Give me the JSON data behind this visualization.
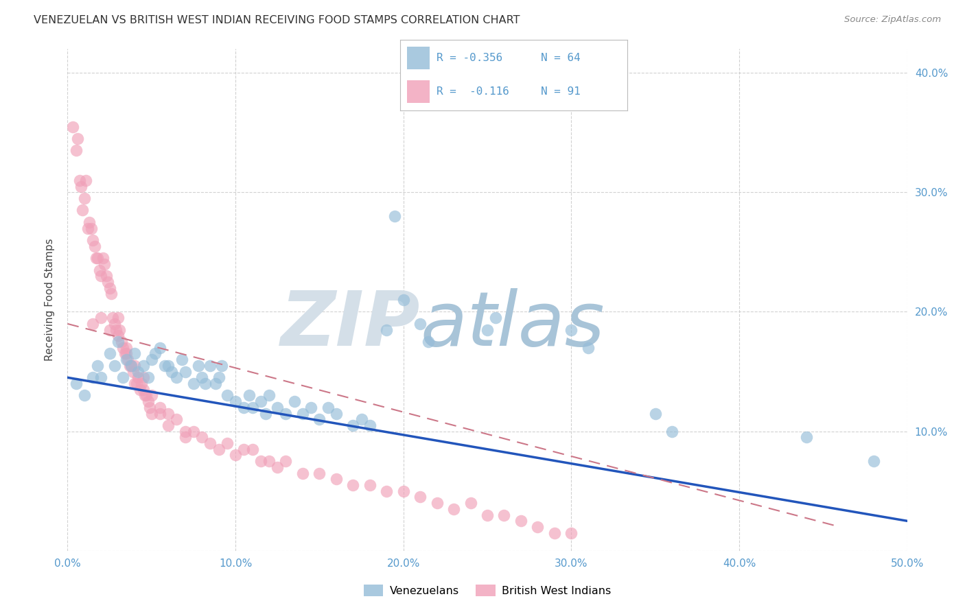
{
  "title": "VENEZUELAN VS BRITISH WEST INDIAN RECEIVING FOOD STAMPS CORRELATION CHART",
  "source": "Source: ZipAtlas.com",
  "ylabel": "Receiving Food Stamps",
  "xlim": [
    0.0,
    0.5
  ],
  "ylim": [
    0.0,
    0.42
  ],
  "xticks": [
    0.0,
    0.1,
    0.2,
    0.3,
    0.4,
    0.5
  ],
  "yticks": [
    0.0,
    0.1,
    0.2,
    0.3,
    0.4
  ],
  "xtick_labels": [
    "0.0%",
    "10.0%",
    "20.0%",
    "30.0%",
    "40.0%",
    "50.0%"
  ],
  "ytick_labels": [
    "",
    "10.0%",
    "20.0%",
    "30.0%",
    "40.0%"
  ],
  "venezuelan_color": "#94bcd8",
  "bwi_color": "#f0a0b8",
  "venezuelan_line_color": "#2255bb",
  "bwi_line_color": "#cc7788",
  "watermark_zip": "ZIP",
  "watermark_atlas": "atlas",
  "watermark_color_zip": "#d0dde8",
  "watermark_color_atlas": "#a8c8e0",
  "venezuelan_scatter": [
    [
      0.005,
      0.14
    ],
    [
      0.01,
      0.13
    ],
    [
      0.015,
      0.145
    ],
    [
      0.018,
      0.155
    ],
    [
      0.02,
      0.145
    ],
    [
      0.025,
      0.165
    ],
    [
      0.028,
      0.155
    ],
    [
      0.03,
      0.175
    ],
    [
      0.033,
      0.145
    ],
    [
      0.035,
      0.16
    ],
    [
      0.038,
      0.155
    ],
    [
      0.04,
      0.165
    ],
    [
      0.042,
      0.15
    ],
    [
      0.045,
      0.155
    ],
    [
      0.048,
      0.145
    ],
    [
      0.05,
      0.16
    ],
    [
      0.052,
      0.165
    ],
    [
      0.055,
      0.17
    ],
    [
      0.058,
      0.155
    ],
    [
      0.06,
      0.155
    ],
    [
      0.062,
      0.15
    ],
    [
      0.065,
      0.145
    ],
    [
      0.068,
      0.16
    ],
    [
      0.07,
      0.15
    ],
    [
      0.075,
      0.14
    ],
    [
      0.078,
      0.155
    ],
    [
      0.08,
      0.145
    ],
    [
      0.082,
      0.14
    ],
    [
      0.085,
      0.155
    ],
    [
      0.088,
      0.14
    ],
    [
      0.09,
      0.145
    ],
    [
      0.092,
      0.155
    ],
    [
      0.095,
      0.13
    ],
    [
      0.1,
      0.125
    ],
    [
      0.105,
      0.12
    ],
    [
      0.108,
      0.13
    ],
    [
      0.11,
      0.12
    ],
    [
      0.115,
      0.125
    ],
    [
      0.118,
      0.115
    ],
    [
      0.12,
      0.13
    ],
    [
      0.125,
      0.12
    ],
    [
      0.13,
      0.115
    ],
    [
      0.135,
      0.125
    ],
    [
      0.14,
      0.115
    ],
    [
      0.145,
      0.12
    ],
    [
      0.15,
      0.11
    ],
    [
      0.155,
      0.12
    ],
    [
      0.16,
      0.115
    ],
    [
      0.17,
      0.105
    ],
    [
      0.175,
      0.11
    ],
    [
      0.18,
      0.105
    ],
    [
      0.19,
      0.185
    ],
    [
      0.195,
      0.28
    ],
    [
      0.2,
      0.21
    ],
    [
      0.21,
      0.19
    ],
    [
      0.215,
      0.175
    ],
    [
      0.25,
      0.185
    ],
    [
      0.255,
      0.195
    ],
    [
      0.3,
      0.185
    ],
    [
      0.31,
      0.17
    ],
    [
      0.35,
      0.115
    ],
    [
      0.36,
      0.1
    ],
    [
      0.44,
      0.095
    ],
    [
      0.48,
      0.075
    ]
  ],
  "bwi_scatter": [
    [
      0.003,
      0.355
    ],
    [
      0.005,
      0.335
    ],
    [
      0.006,
      0.345
    ],
    [
      0.007,
      0.31
    ],
    [
      0.008,
      0.305
    ],
    [
      0.009,
      0.285
    ],
    [
      0.01,
      0.295
    ],
    [
      0.011,
      0.31
    ],
    [
      0.012,
      0.27
    ],
    [
      0.013,
      0.275
    ],
    [
      0.014,
      0.27
    ],
    [
      0.015,
      0.26
    ],
    [
      0.016,
      0.255
    ],
    [
      0.017,
      0.245
    ],
    [
      0.018,
      0.245
    ],
    [
      0.019,
      0.235
    ],
    [
      0.02,
      0.23
    ],
    [
      0.021,
      0.245
    ],
    [
      0.022,
      0.24
    ],
    [
      0.023,
      0.23
    ],
    [
      0.024,
      0.225
    ],
    [
      0.025,
      0.22
    ],
    [
      0.026,
      0.215
    ],
    [
      0.027,
      0.195
    ],
    [
      0.028,
      0.19
    ],
    [
      0.029,
      0.185
    ],
    [
      0.03,
      0.195
    ],
    [
      0.031,
      0.185
    ],
    [
      0.032,
      0.175
    ],
    [
      0.033,
      0.17
    ],
    [
      0.034,
      0.165
    ],
    [
      0.035,
      0.17
    ],
    [
      0.036,
      0.16
    ],
    [
      0.037,
      0.155
    ],
    [
      0.038,
      0.155
    ],
    [
      0.039,
      0.15
    ],
    [
      0.04,
      0.14
    ],
    [
      0.041,
      0.14
    ],
    [
      0.042,
      0.145
    ],
    [
      0.043,
      0.135
    ],
    [
      0.044,
      0.14
    ],
    [
      0.045,
      0.135
    ],
    [
      0.046,
      0.13
    ],
    [
      0.047,
      0.13
    ],
    [
      0.048,
      0.125
    ],
    [
      0.049,
      0.12
    ],
    [
      0.05,
      0.115
    ],
    [
      0.055,
      0.12
    ],
    [
      0.06,
      0.115
    ],
    [
      0.065,
      0.11
    ],
    [
      0.07,
      0.1
    ],
    [
      0.075,
      0.1
    ],
    [
      0.08,
      0.095
    ],
    [
      0.085,
      0.09
    ],
    [
      0.09,
      0.085
    ],
    [
      0.095,
      0.09
    ],
    [
      0.1,
      0.08
    ],
    [
      0.105,
      0.085
    ],
    [
      0.11,
      0.085
    ],
    [
      0.115,
      0.075
    ],
    [
      0.12,
      0.075
    ],
    [
      0.125,
      0.07
    ],
    [
      0.13,
      0.075
    ],
    [
      0.14,
      0.065
    ],
    [
      0.15,
      0.065
    ],
    [
      0.16,
      0.06
    ],
    [
      0.17,
      0.055
    ],
    [
      0.18,
      0.055
    ],
    [
      0.19,
      0.05
    ],
    [
      0.2,
      0.05
    ],
    [
      0.21,
      0.045
    ],
    [
      0.22,
      0.04
    ],
    [
      0.23,
      0.035
    ],
    [
      0.24,
      0.04
    ],
    [
      0.25,
      0.03
    ],
    [
      0.26,
      0.03
    ],
    [
      0.27,
      0.025
    ],
    [
      0.28,
      0.02
    ],
    [
      0.29,
      0.015
    ],
    [
      0.3,
      0.015
    ],
    [
      0.015,
      0.19
    ],
    [
      0.02,
      0.195
    ],
    [
      0.025,
      0.185
    ],
    [
      0.03,
      0.18
    ],
    [
      0.035,
      0.165
    ],
    [
      0.04,
      0.155
    ],
    [
      0.045,
      0.145
    ],
    [
      0.05,
      0.13
    ],
    [
      0.055,
      0.115
    ],
    [
      0.06,
      0.105
    ],
    [
      0.07,
      0.095
    ]
  ],
  "ven_line_x": [
    0.0,
    0.5
  ],
  "ven_line_y": [
    0.145,
    0.025
  ],
  "bwi_line_x": [
    0.0,
    0.46
  ],
  "bwi_line_y": [
    0.19,
    0.02
  ]
}
